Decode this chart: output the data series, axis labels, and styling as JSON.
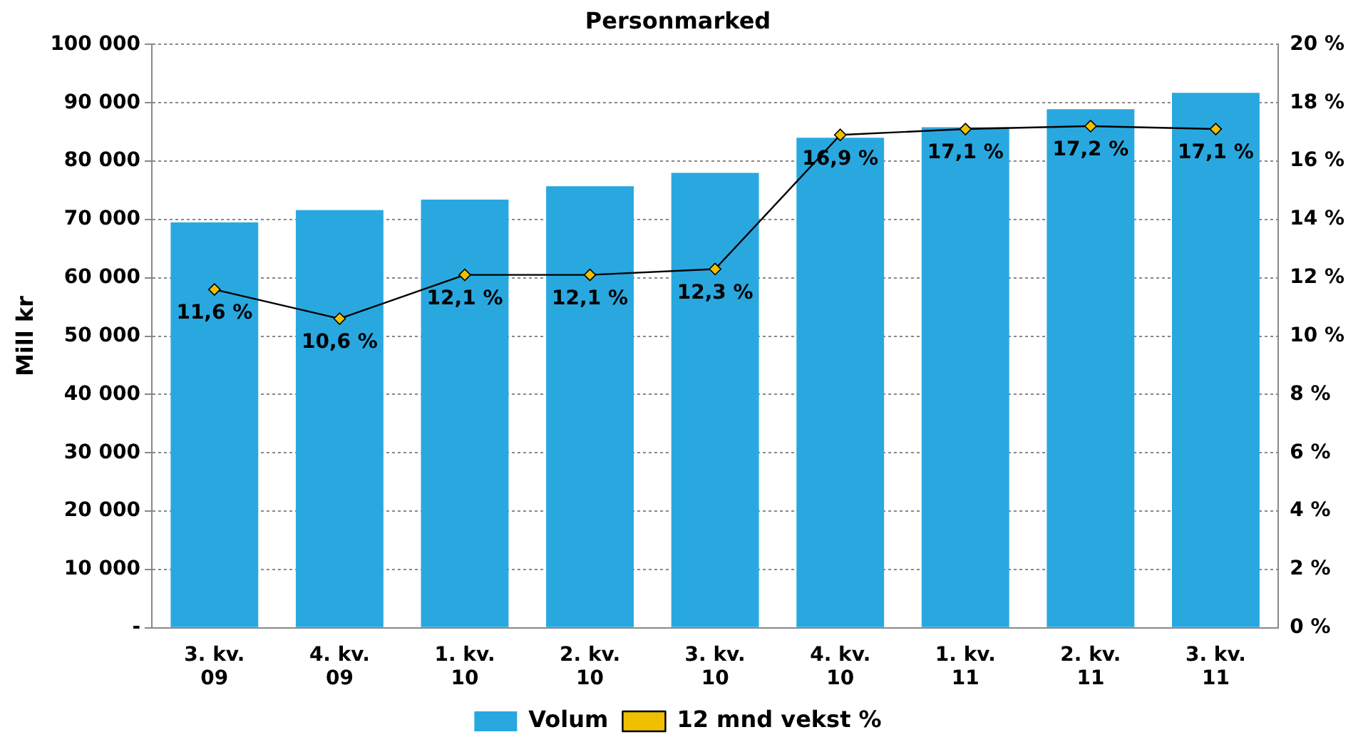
{
  "chart_data": {
    "type": "bar",
    "title": "Personmarked",
    "ylabel": "Mill kr",
    "categories": [
      "3. kv.\n09",
      "4. kv.\n09",
      "1. kv.\n10",
      "2. kv.\n10",
      "3. kv.\n10",
      "4. kv.\n10",
      "1. kv.\n11",
      "2. kv.\n11",
      "3. kv.\n11"
    ],
    "series": [
      {
        "name": "Volum",
        "color": "#29a8e0",
        "values": [
          69500,
          71600,
          73400,
          75700,
          78000,
          84000,
          85800,
          88900,
          91700
        ]
      },
      {
        "name": "12 mnd vekst %",
        "type": "line",
        "axis": "y2",
        "color": "#000000",
        "marker": "diamond",
        "values": [
          11.6,
          10.6,
          12.1,
          12.1,
          12.3,
          16.9,
          17.1,
          17.2,
          17.1
        ],
        "value_labels": [
          "11,6 %",
          "10,6 %",
          "12,1 %",
          "12,1 %",
          "12,3 %",
          "16,9 %",
          "17,1 %",
          "17,2 %",
          "17,1 %"
        ]
      }
    ],
    "ylim": [
      0,
      100000
    ],
    "yticks": [
      {
        "value": 0,
        "label": "-"
      },
      {
        "value": 10000,
        "label": "10 000"
      },
      {
        "value": 20000,
        "label": "20 000"
      },
      {
        "value": 30000,
        "label": "30 000"
      },
      {
        "value": 40000,
        "label": "40 000"
      },
      {
        "value": 50000,
        "label": "50 000"
      },
      {
        "value": 60000,
        "label": "60 000"
      },
      {
        "value": 70000,
        "label": "70 000"
      },
      {
        "value": 80000,
        "label": "80 000"
      },
      {
        "value": 90000,
        "label": "90 000"
      },
      {
        "value": 100000,
        "label": "100 000"
      }
    ],
    "y2lim": [
      0,
      20
    ],
    "y2ticks": [
      {
        "value": 0,
        "label": "0 %"
      },
      {
        "value": 2,
        "label": "2 %"
      },
      {
        "value": 4,
        "label": "4 %"
      },
      {
        "value": 6,
        "label": "6 %"
      },
      {
        "value": 8,
        "label": "8 %"
      },
      {
        "value": 10,
        "label": "10 %"
      },
      {
        "value": 12,
        "label": "12 %"
      },
      {
        "value": 14,
        "label": "14 %"
      },
      {
        "value": 16,
        "label": "16 %"
      },
      {
        "value": 18,
        "label": "18 %"
      },
      {
        "value": 20,
        "label": "20 %"
      }
    ],
    "grid": "y",
    "legend": "bottom"
  }
}
